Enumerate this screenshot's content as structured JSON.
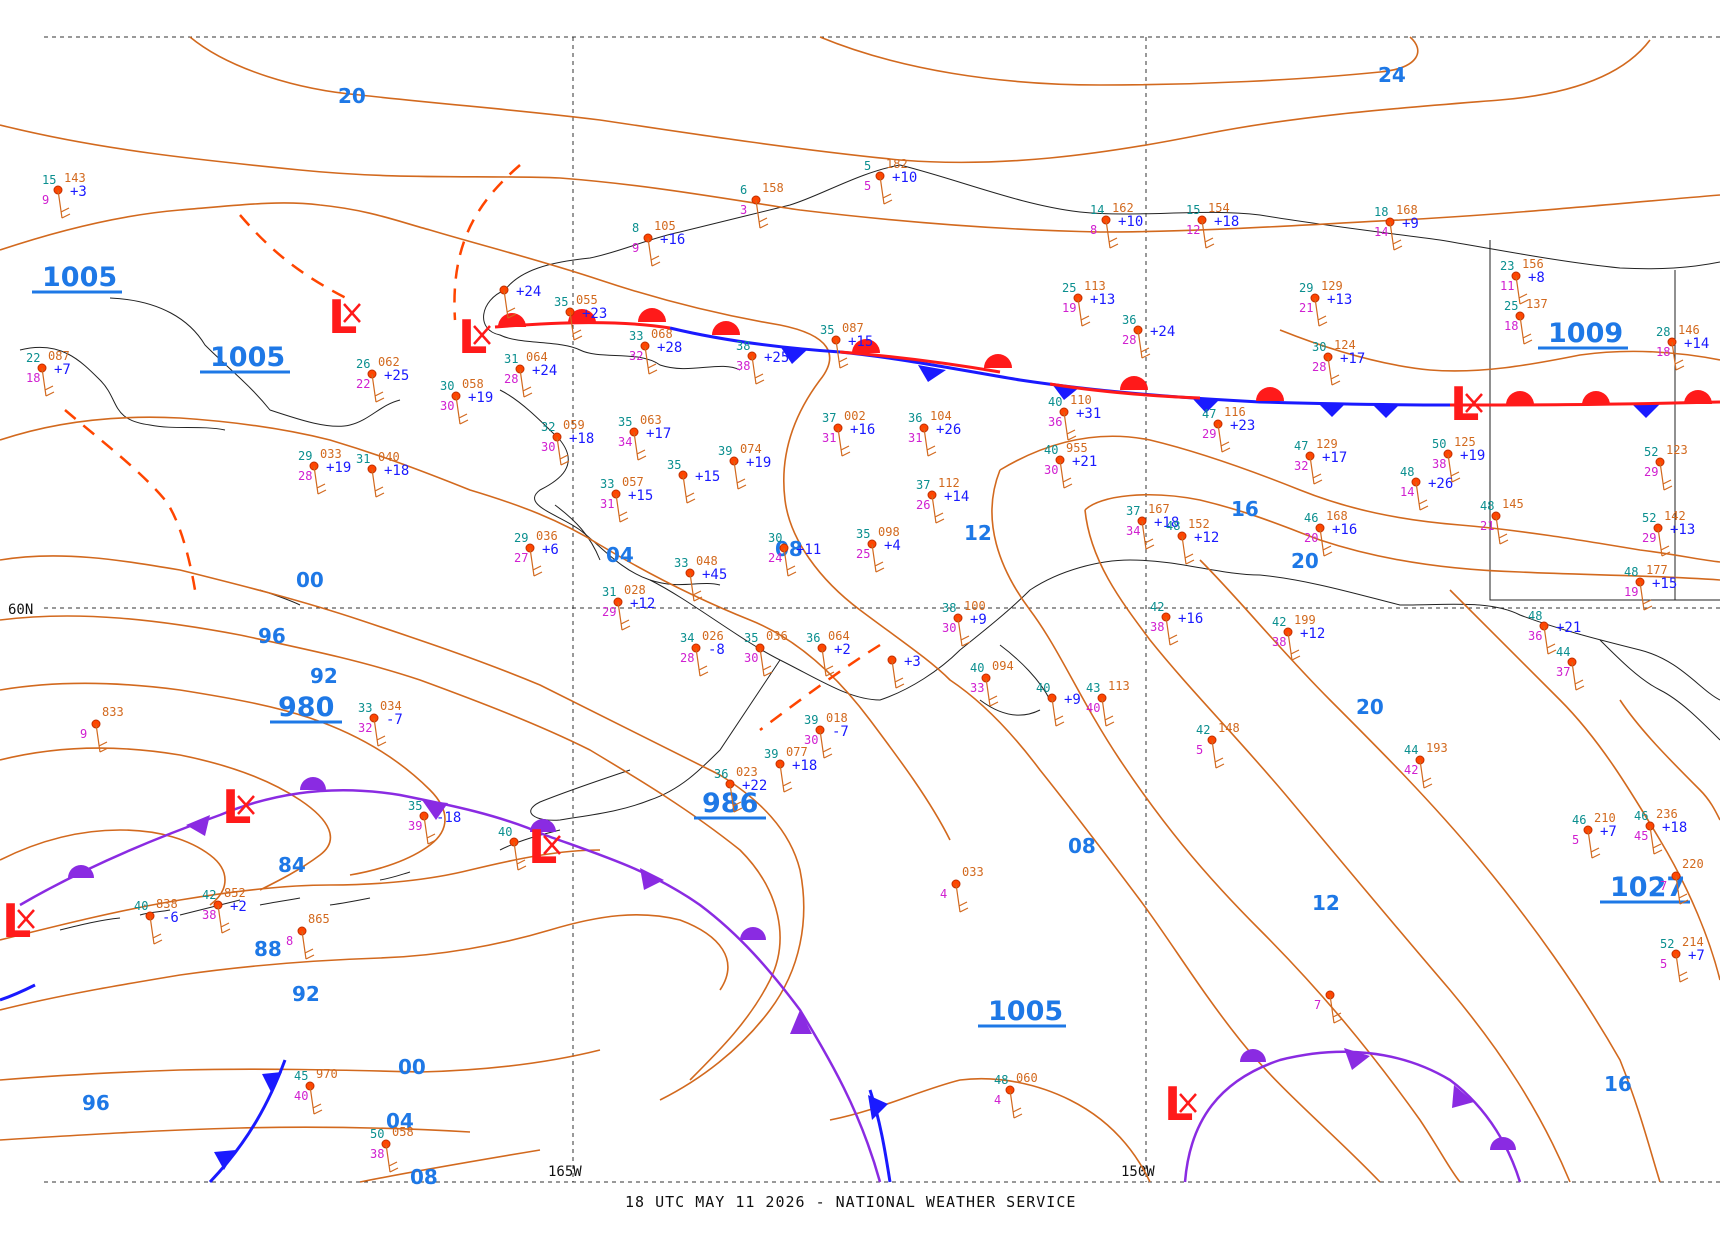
{
  "footer": "18 UTC MAY 11 2026 - NATIONAL WEATHER SERVICE",
  "grid": {
    "lat_label": "60N",
    "lon_labels": [
      "165W",
      "150W"
    ]
  },
  "isobar_labels": [
    "20",
    "24",
    "00",
    "96",
    "92",
    "84",
    "88",
    "92",
    "96",
    "00",
    "04",
    "08",
    "04",
    "08",
    "08",
    "12",
    "16",
    "20",
    "20",
    "12",
    "16"
  ],
  "pressure_centers": [
    "1005",
    "1005",
    "980",
    "986",
    "1005",
    "1009",
    "1027"
  ],
  "lows": [
    "L",
    "L",
    "L",
    "L",
    "L",
    "L"
  ],
  "stations": [
    {
      "t": "15",
      "p": "143",
      "d": "9",
      "c": "+3"
    },
    {
      "t": "22",
      "p": "087",
      "d": "18",
      "c": "+7"
    },
    {
      "t": "26",
      "p": "062",
      "d": "22",
      "c": "+25"
    },
    {
      "t": "30",
      "p": "058",
      "d": "30",
      "c": "+19"
    },
    {
      "t": "",
      "p": "",
      "d": "",
      "c": "+24"
    },
    {
      "t": "8",
      "p": "105",
      "d": "9",
      "c": "+16"
    },
    {
      "t": "6",
      "p": "158",
      "d": "3",
      "c": ""
    },
    {
      "t": "5",
      "p": "182",
      "d": "5",
      "c": "+10"
    },
    {
      "t": "35",
      "p": "055",
      "d": "",
      "c": "+23"
    },
    {
      "t": "31",
      "p": "064",
      "d": "28",
      "c": "+24"
    },
    {
      "t": "33",
      "p": "068",
      "d": "32",
      "c": "+28"
    },
    {
      "t": "38",
      "p": "",
      "d": "38",
      "c": "+25"
    },
    {
      "t": "35",
      "p": "087",
      "d": "",
      "c": "+15"
    },
    {
      "t": "14",
      "p": "162",
      "d": "8",
      "c": "+10"
    },
    {
      "t": "15",
      "p": "154",
      "d": "12",
      "c": "+18"
    },
    {
      "t": "18",
      "p": "168",
      "d": "14",
      "c": "+9"
    },
    {
      "t": "25",
      "p": "113",
      "d": "19",
      "c": "+13"
    },
    {
      "t": "29",
      "p": "129",
      "d": "21",
      "c": "+13"
    },
    {
      "t": "36",
      "p": "",
      "d": "28",
      "c": "+24"
    },
    {
      "t": "30",
      "p": "124",
      "d": "28",
      "c": "+17"
    },
    {
      "t": "23",
      "p": "156",
      "d": "11",
      "c": "+8"
    },
    {
      "t": "25",
      "p": "137",
      "d": "18",
      "c": ""
    },
    {
      "t": "28",
      "p": "146",
      "d": "18",
      "c": "+14"
    },
    {
      "t": "29",
      "p": "033",
      "d": "28",
      "c": "+19"
    },
    {
      "t": "31",
      "p": "040",
      "d": "",
      "c": "+18"
    },
    {
      "t": "32",
      "p": "059",
      "d": "30",
      "c": "+18"
    },
    {
      "t": "35",
      "p": "063",
      "d": "34",
      "c": "+17"
    },
    {
      "t": "39",
      "p": "074",
      "d": "",
      "c": "+19"
    },
    {
      "t": "35",
      "p": "",
      "d": "",
      "c": "+15"
    },
    {
      "t": "33",
      "p": "057",
      "d": "31",
      "c": "+15"
    },
    {
      "t": "37",
      "p": "002",
      "d": "31",
      "c": "+16"
    },
    {
      "t": "36",
      "p": "104",
      "d": "31",
      "c": "+26"
    },
    {
      "t": "40",
      "p": "110",
      "d": "36",
      "c": "+31"
    },
    {
      "t": "47",
      "p": "116",
      "d": "29",
      "c": "+23"
    },
    {
      "t": "40",
      "p": "955",
      "d": "30",
      "c": "+21"
    },
    {
      "t": "47",
      "p": "129",
      "d": "32",
      "c": "+17"
    },
    {
      "t": "50",
      "p": "125",
      "d": "38",
      "c": "+19"
    },
    {
      "t": "52",
      "p": "123",
      "d": "29",
      "c": ""
    },
    {
      "t": "48",
      "p": "",
      "d": "14",
      "c": "+26"
    },
    {
      "t": "48",
      "p": "145",
      "d": "21",
      "c": ""
    },
    {
      "t": "37",
      "p": "112",
      "d": "26",
      "c": "+14"
    },
    {
      "t": "37",
      "p": "167",
      "d": "34",
      "c": "+18"
    },
    {
      "t": "48",
      "p": "152",
      "d": "",
      "c": "+12"
    },
    {
      "t": "46",
      "p": "168",
      "d": "20",
      "c": "+16"
    },
    {
      "t": "52",
      "p": "142",
      "d": "29",
      "c": "+13"
    },
    {
      "t": "48",
      "p": "177",
      "d": "19",
      "c": "+15"
    },
    {
      "t": "29",
      "p": "036",
      "d": "27",
      "c": "+6"
    },
    {
      "t": "35",
      "p": "098",
      "d": "25",
      "c": "+4"
    },
    {
      "t": "30",
      "p": "",
      "d": "24",
      "c": "+11"
    },
    {
      "t": "33",
      "p": "048",
      "d": "",
      "c": "+45"
    },
    {
      "t": "31",
      "p": "028",
      "d": "29",
      "c": "+12"
    },
    {
      "t": "34",
      "p": "026",
      "d": "28",
      "c": "-8"
    },
    {
      "t": "35",
      "p": "036",
      "d": "30",
      "c": ""
    },
    {
      "t": "36",
      "p": "064",
      "d": "",
      "c": "+2"
    },
    {
      "t": "",
      "p": "",
      "d": "",
      "c": "+3"
    },
    {
      "t": "38",
      "p": "100",
      "d": "30",
      "c": "+9"
    },
    {
      "t": "40",
      "p": "094",
      "d": "33",
      "c": ""
    },
    {
      "t": "40",
      "p": "",
      "d": "",
      "c": "+9"
    },
    {
      "t": "43",
      "p": "113",
      "d": "40",
      "c": ""
    },
    {
      "t": "42",
      "p": "",
      "d": "38",
      "c": "+16"
    },
    {
      "t": "42",
      "p": "199",
      "d": "38",
      "c": "+12"
    },
    {
      "t": "48",
      "p": "",
      "d": "36",
      "c": "+21"
    },
    {
      "t": "44",
      "p": "",
      "d": "37",
      "c": ""
    },
    {
      "t": "",
      "p": "833",
      "d": "9",
      "c": ""
    },
    {
      "t": "33",
      "p": "034",
      "d": "32",
      "c": "-7"
    },
    {
      "t": "39",
      "p": "018",
      "d": "30",
      "c": "-7"
    },
    {
      "t": "39",
      "p": "077",
      "d": "",
      "c": "+18"
    },
    {
      "t": "36",
      "p": "023",
      "d": "",
      "c": "+22"
    },
    {
      "t": "42",
      "p": "148",
      "d": "5",
      "c": ""
    },
    {
      "t": "44",
      "p": "193",
      "d": "42",
      "c": ""
    },
    {
      "t": "46",
      "p": "210",
      "d": "5",
      "c": "+7"
    },
    {
      "t": "46",
      "p": "236",
      "d": "45",
      "c": "+18"
    },
    {
      "t": "",
      "p": "220",
      "d": "7",
      "c": ""
    },
    {
      "t": "52",
      "p": "214",
      "d": "5",
      "c": "+7"
    },
    {
      "t": "35",
      "p": "",
      "d": "39",
      "c": "-18"
    },
    {
      "t": "40",
      "p": "",
      "d": "",
      "c": ""
    },
    {
      "t": "40",
      "p": "838",
      "d": "",
      "c": "-6"
    },
    {
      "t": "42",
      "p": "852",
      "d": "38",
      "c": "+2"
    },
    {
      "t": "",
      "p": "865",
      "d": "8",
      "c": ""
    },
    {
      "t": "",
      "p": "033",
      "d": "4",
      "c": ""
    },
    {
      "t": "",
      "p": "",
      "d": "7",
      "c": ""
    },
    {
      "t": "45",
      "p": "970",
      "d": "40",
      "c": ""
    },
    {
      "t": "50",
      "p": "058",
      "d": "38",
      "c": ""
    },
    {
      "t": "48",
      "p": "060",
      "d": "4",
      "c": ""
    }
  ]
}
